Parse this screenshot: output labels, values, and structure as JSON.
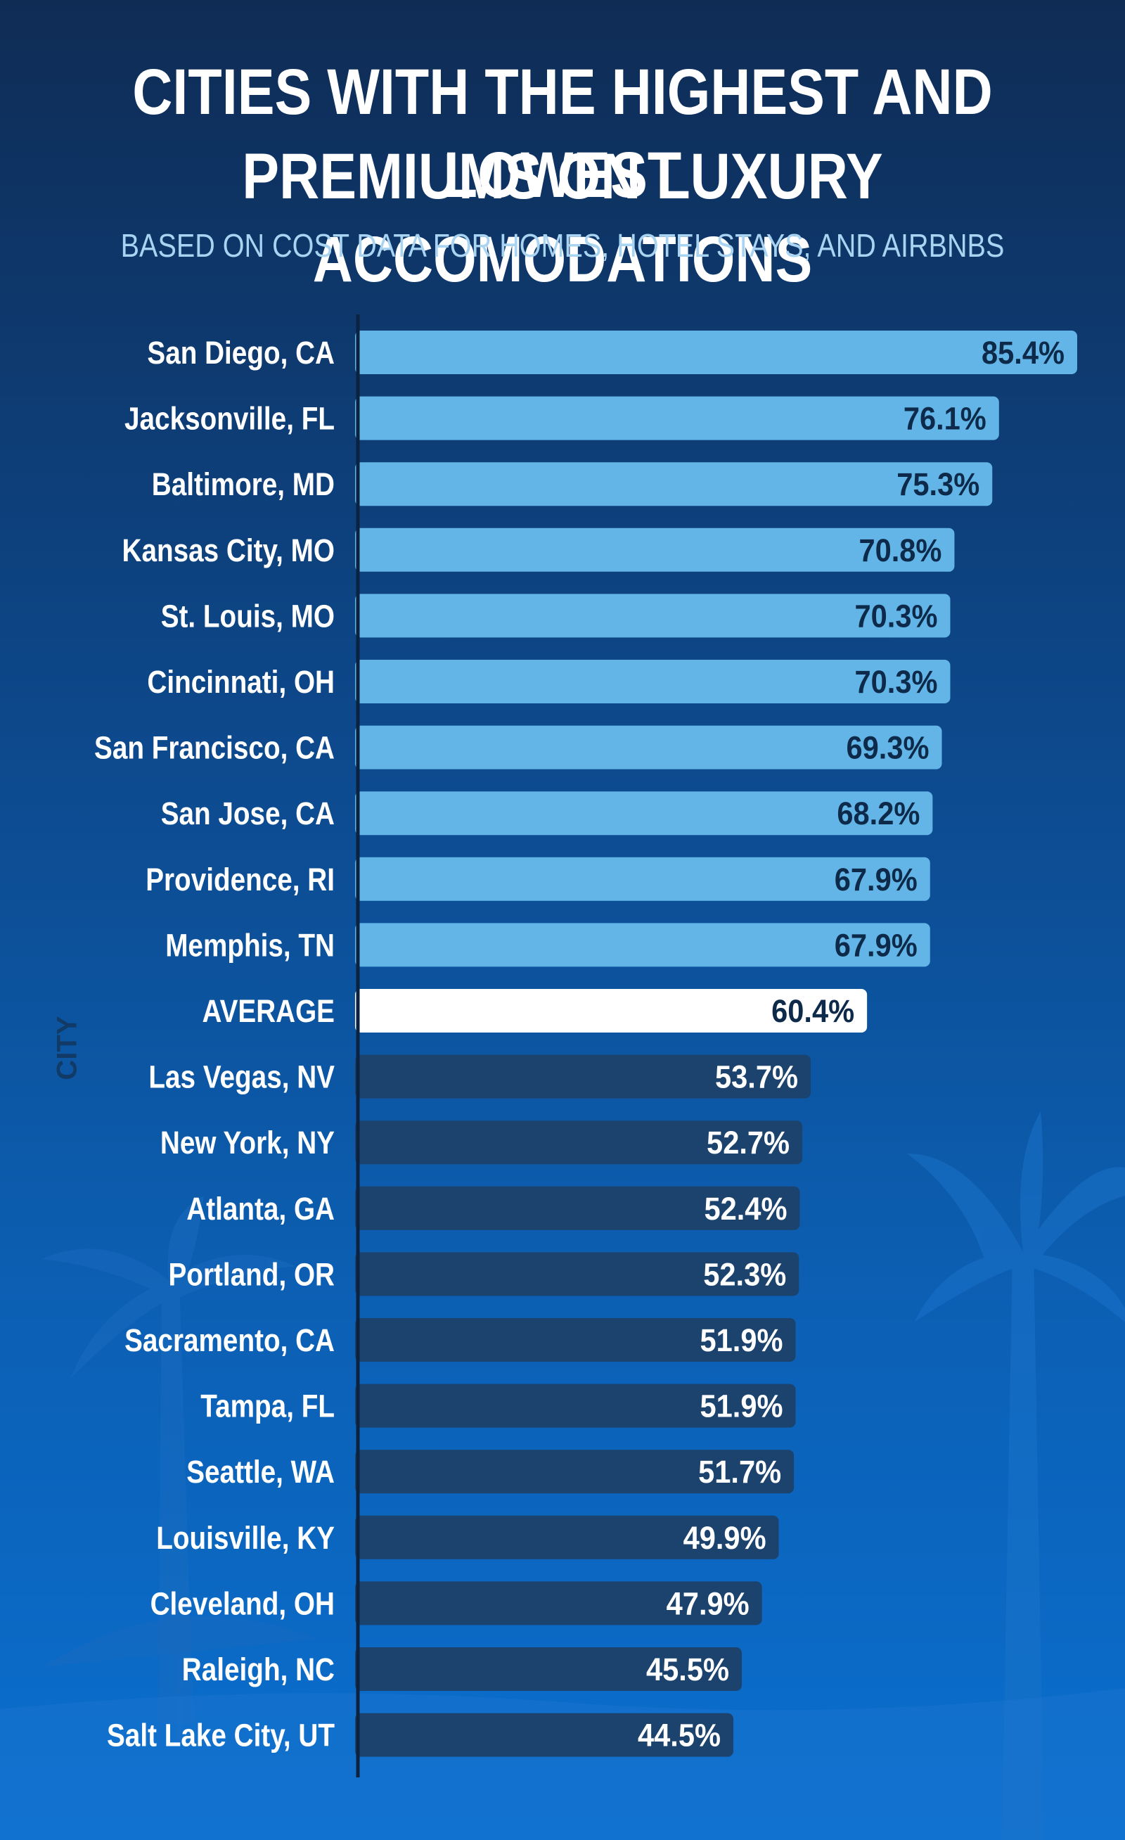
{
  "header": {
    "title_line_1": "CITIES WITH THE HIGHEST AND LOWEST",
    "title_line_2": "PREMIUMS ON LUXURY ACCOMODATIONS",
    "subtitle": "BASED ON COST DATA FOR HOMES, HOTEL STAYS, AND AIRBNBS"
  },
  "colors": {
    "top_bar": "#62b5e6",
    "average_bar": "#ffffff",
    "bottom_bar": "#1b436d",
    "top_value_text": "#0e2a4a",
    "average_value_text": "#0e2a4a",
    "bottom_value_text": "#ffffff",
    "axis_line": "#0b2340"
  },
  "chart_data": {
    "type": "bar",
    "orientation": "horizontal",
    "title": "CITIES WITH THE HIGHEST AND LOWEST PREMIUMS ON LUXURY ACCOMODATIONS",
    "subtitle": "BASED ON COST DATA FOR HOMES, HOTEL STAYS, AND AIRBNBS",
    "ylabel": "CITY",
    "xlabel": "",
    "xlim": [
      0,
      85.4
    ],
    "grid": false,
    "categories": [
      "San Diego, CA",
      "Jacksonville, FL",
      "Baltimore, MD",
      "Kansas City, MO",
      "St. Louis, MO",
      "Cincinnati, OH",
      "San Francisco, CA",
      "San Jose, CA",
      "Providence, RI",
      "Memphis, TN",
      "AVERAGE",
      "Las Vegas, NV",
      "New York, NY",
      "Atlanta, GA",
      "Portland, OR",
      "Sacramento, CA",
      "Tampa, FL",
      "Seattle, WA",
      "Louisville, KY",
      "Cleveland, OH",
      "Raleigh, NC",
      "Salt Lake City, UT"
    ],
    "values": [
      85.4,
      76.1,
      75.3,
      70.8,
      70.3,
      70.3,
      69.3,
      68.2,
      67.9,
      67.9,
      60.4,
      53.7,
      52.7,
      52.4,
      52.3,
      51.9,
      51.9,
      51.7,
      49.9,
      47.9,
      45.5,
      44.5
    ],
    "value_labels": [
      "85.4%",
      "76.1%",
      "75.3%",
      "70.8%",
      "70.3%",
      "70.3%",
      "69.3%",
      "68.2%",
      "67.9%",
      "67.9%",
      "60.4%",
      "53.7%",
      "52.7%",
      "52.4%",
      "52.3%",
      "51.9%",
      "51.9%",
      "51.7%",
      "49.9%",
      "47.9%",
      "45.5%",
      "44.5%"
    ],
    "groups": [
      "top",
      "top",
      "top",
      "top",
      "top",
      "top",
      "top",
      "top",
      "top",
      "top",
      "average",
      "bottom",
      "bottom",
      "bottom",
      "bottom",
      "bottom",
      "bottom",
      "bottom",
      "bottom",
      "bottom",
      "bottom",
      "bottom"
    ]
  }
}
